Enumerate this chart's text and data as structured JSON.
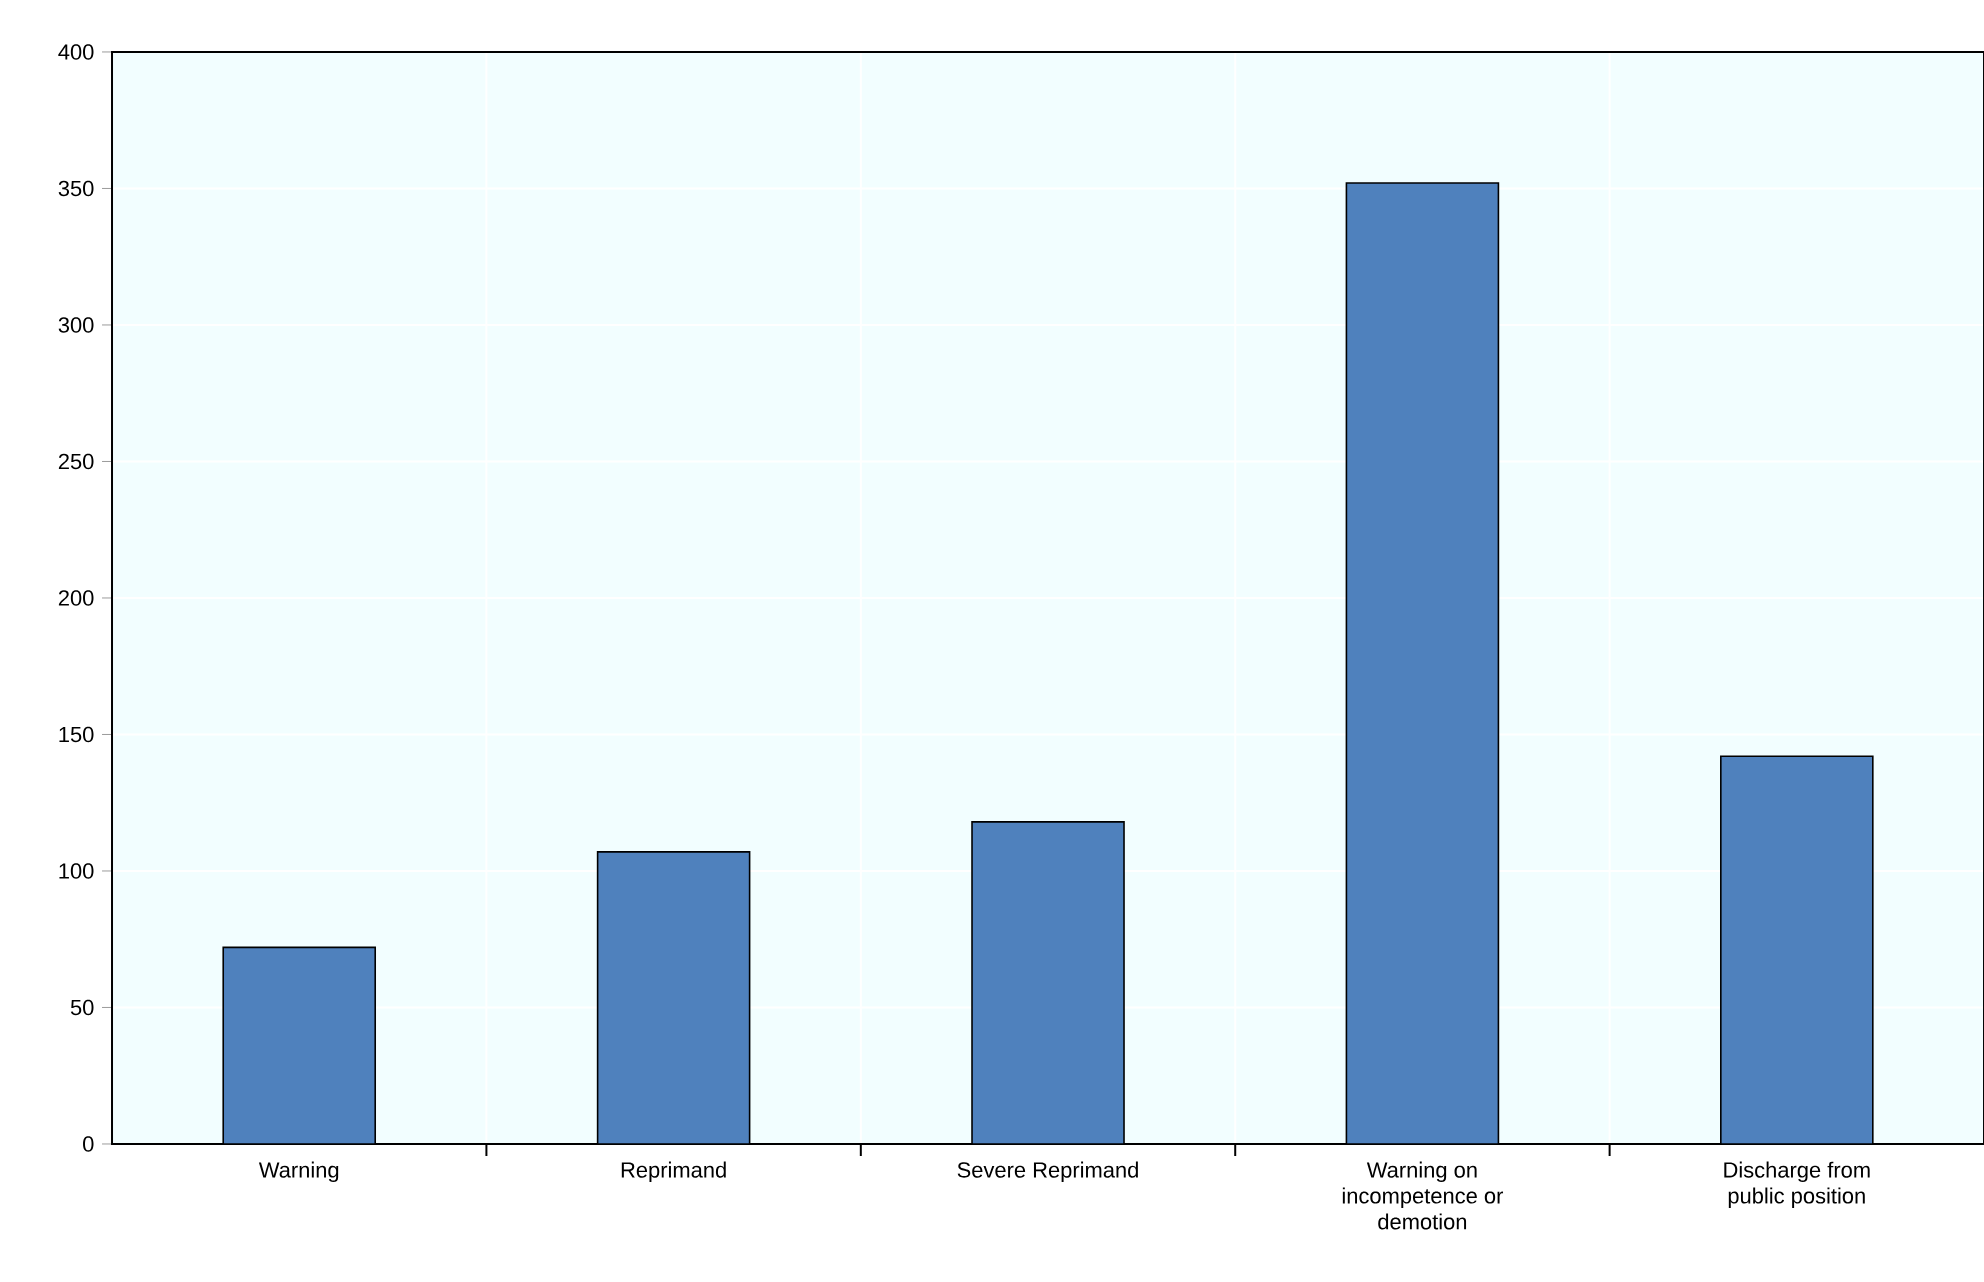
{
  "chart_data": {
    "type": "bar",
    "categories": [
      "Warning",
      "Reprimand",
      "Severe Reprimand",
      "Warning on incompetence or demotion",
      "Discharge from public position"
    ],
    "values": [
      72,
      107,
      118,
      352,
      142
    ],
    "color": "#4f81bd",
    "ylim": [
      0,
      400
    ],
    "yticks": [
      0,
      50,
      100,
      150,
      200,
      250,
      300,
      350,
      400
    ],
    "grid": true
  }
}
